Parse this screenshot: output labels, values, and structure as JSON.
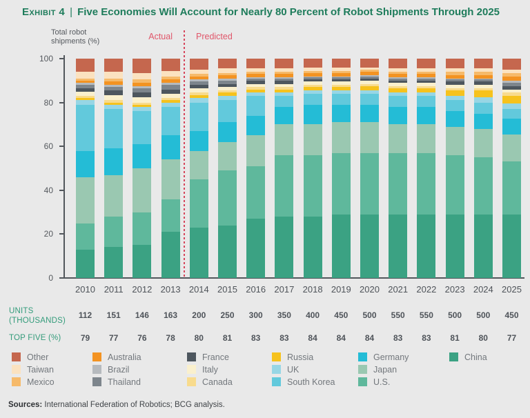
{
  "header": {
    "exhibit": "Exhibit 4",
    "divider": "|",
    "title": "Five Economies Will Account for Nearly 80 Percent of Robot Shipments Through 2025",
    "accent_color": "#1E7C5B"
  },
  "chart": {
    "y_axis_label": "Total robot shipments (%)",
    "actual_label": "Actual",
    "predicted_label": "Predicted",
    "y_ticks": [
      100,
      80,
      60,
      40,
      20,
      0
    ],
    "divider_color": "#D6455B",
    "annotation_color": "#E0566A"
  },
  "chart_data": {
    "type": "bar",
    "stacked": true,
    "title": "Five Economies Will Account for Nearly 80 Percent of Robot Shipments Through 2025",
    "ylabel": "Total robot shipments (%)",
    "ylim": [
      0,
      100
    ],
    "grid": false,
    "categories": [
      "2010",
      "2011",
      "2012",
      "2013",
      "2014",
      "2015",
      "2016",
      "2017",
      "2018",
      "2019",
      "2020",
      "2021",
      "2022",
      "2023",
      "2024",
      "2025"
    ],
    "actual_years": [
      "2010",
      "2011",
      "2012",
      "2013"
    ],
    "predicted_years": [
      "2014",
      "2015",
      "2016",
      "2017",
      "2018",
      "2019",
      "2020",
      "2021",
      "2022",
      "2023",
      "2024",
      "2025"
    ],
    "series": [
      {
        "name": "China",
        "color": "#3BA283",
        "values": [
          13,
          14,
          15,
          21,
          23,
          24,
          27,
          28,
          28,
          29,
          29,
          29,
          29,
          29,
          29,
          29
        ]
      },
      {
        "name": "U.S.",
        "color": "#5FB89C",
        "values": [
          12,
          14,
          15,
          15,
          22,
          25,
          24,
          28,
          28,
          28,
          28,
          28,
          28,
          27,
          26,
          24
        ]
      },
      {
        "name": "Japan",
        "color": "#9AC8B1",
        "values": [
          21,
          19,
          20,
          18,
          13,
          13,
          14,
          14,
          14,
          14,
          14,
          13,
          13,
          13,
          13,
          12.5
        ]
      },
      {
        "name": "Germany",
        "color": "#24BCD6",
        "values": [
          12,
          12,
          11,
          11,
          9,
          9,
          9,
          8,
          9,
          8,
          8,
          8,
          8,
          7,
          7,
          7
        ]
      },
      {
        "name": "South Korea",
        "color": "#62C9DC",
        "values": [
          21,
          18,
          15,
          13,
          13,
          10,
          9,
          5,
          5,
          5,
          5,
          5,
          5,
          5,
          5,
          4.5
        ]
      },
      {
        "name": "UK",
        "color": "#97D6E5",
        "values": [
          2,
          2,
          2,
          2,
          2,
          2,
          1.5,
          1.5,
          1.5,
          1.5,
          1.5,
          1.5,
          1.5,
          2,
          2.5,
          2.5
        ]
      },
      {
        "name": "Russia",
        "color": "#F6C21D",
        "values": [
          1,
          1,
          1,
          1,
          1.5,
          1.5,
          1.5,
          1.5,
          1.5,
          1.5,
          2,
          2,
          2,
          2.5,
          3,
          3.5
        ]
      },
      {
        "name": "Canada",
        "color": "#F8DB8D",
        "values": [
          1,
          1,
          1,
          1,
          1,
          1,
          1,
          1,
          1,
          1,
          1,
          1,
          1,
          1,
          1,
          1.5
        ]
      },
      {
        "name": "Italy",
        "color": "#FAF0CD",
        "values": [
          2,
          2.5,
          2.5,
          2,
          2,
          1.5,
          1.5,
          1.5,
          1.5,
          1.5,
          1.5,
          1.5,
          1.5,
          1.5,
          1.5,
          1.5
        ]
      },
      {
        "name": "France",
        "color": "#4D565E",
        "values": [
          1.5,
          2,
          2,
          2,
          1.5,
          1.5,
          1.5,
          1.5,
          1,
          1,
          1,
          1,
          1,
          1.5,
          1.5,
          1.5
        ]
      },
      {
        "name": "Thailand",
        "color": "#7D858C",
        "values": [
          1.5,
          1.5,
          2,
          2,
          1.5,
          1.5,
          1,
          1,
          1,
          1,
          1,
          1,
          1,
          1,
          1,
          1.5
        ]
      },
      {
        "name": "Brazil",
        "color": "#B6BABE",
        "values": [
          1,
          1,
          1,
          1,
          1,
          1,
          0.5,
          0.5,
          0.5,
          0.5,
          0.5,
          0.5,
          0.5,
          0.5,
          0.5,
          1
        ]
      },
      {
        "name": "Australia",
        "color": "#F39322",
        "values": [
          1,
          1.5,
          1.5,
          1.5,
          1.5,
          1.5,
          1.5,
          1.5,
          1.5,
          1.5,
          1.5,
          1.5,
          1.5,
          1.5,
          1.5,
          2
        ]
      },
      {
        "name": "Mexico",
        "color": "#F6BA6A",
        "values": [
          1,
          1.5,
          1.5,
          1.5,
          1,
          1,
          1,
          1,
          1,
          1,
          1,
          1,
          1,
          1.5,
          1.5,
          1.5
        ]
      },
      {
        "name": "Taiwan",
        "color": "#FBE2C0",
        "values": [
          3,
          3,
          3,
          2.5,
          2,
          2,
          1.5,
          1.5,
          1.5,
          1.5,
          1,
          1.5,
          1.5,
          1.5,
          1.5,
          1.5
        ]
      },
      {
        "name": "Other",
        "color": "#C5674E",
        "values": [
          6,
          6,
          6.5,
          5.5,
          5,
          4.5,
          4.5,
          4.5,
          4,
          4,
          4,
          4.5,
          4.5,
          4.5,
          4.5,
          5
        ]
      }
    ],
    "units_thousands": [
      "112",
      "151",
      "146",
      "163",
      "200",
      "250",
      "300",
      "350",
      "400",
      "450",
      "500",
      "550",
      "550",
      "500",
      "500",
      "450"
    ],
    "top_five_pct": [
      "79",
      "77",
      "76",
      "78",
      "80",
      "81",
      "83",
      "83",
      "84",
      "84",
      "84",
      "83",
      "83",
      "81",
      "80",
      "77"
    ]
  },
  "table": {
    "units_label_line1": "UNITS",
    "units_label_line2": "(THOUSANDS)",
    "top_five_label": "TOP FIVE (%)",
    "label_color": "#349C7B"
  },
  "legend": {
    "columns": [
      [
        "Other",
        "Taiwan",
        "Mexico"
      ],
      [
        "Australia",
        "Brazil",
        "Thailand"
      ],
      [
        "France",
        "Italy",
        "Canada"
      ],
      [
        "Russia",
        "UK",
        "South Korea"
      ],
      [
        "Germany",
        "Japan",
        "U.S."
      ],
      [
        "China"
      ]
    ]
  },
  "footer": {
    "sources_label": "Sources:",
    "sources_text": "International Federation of Robotics; BCG analysis."
  }
}
